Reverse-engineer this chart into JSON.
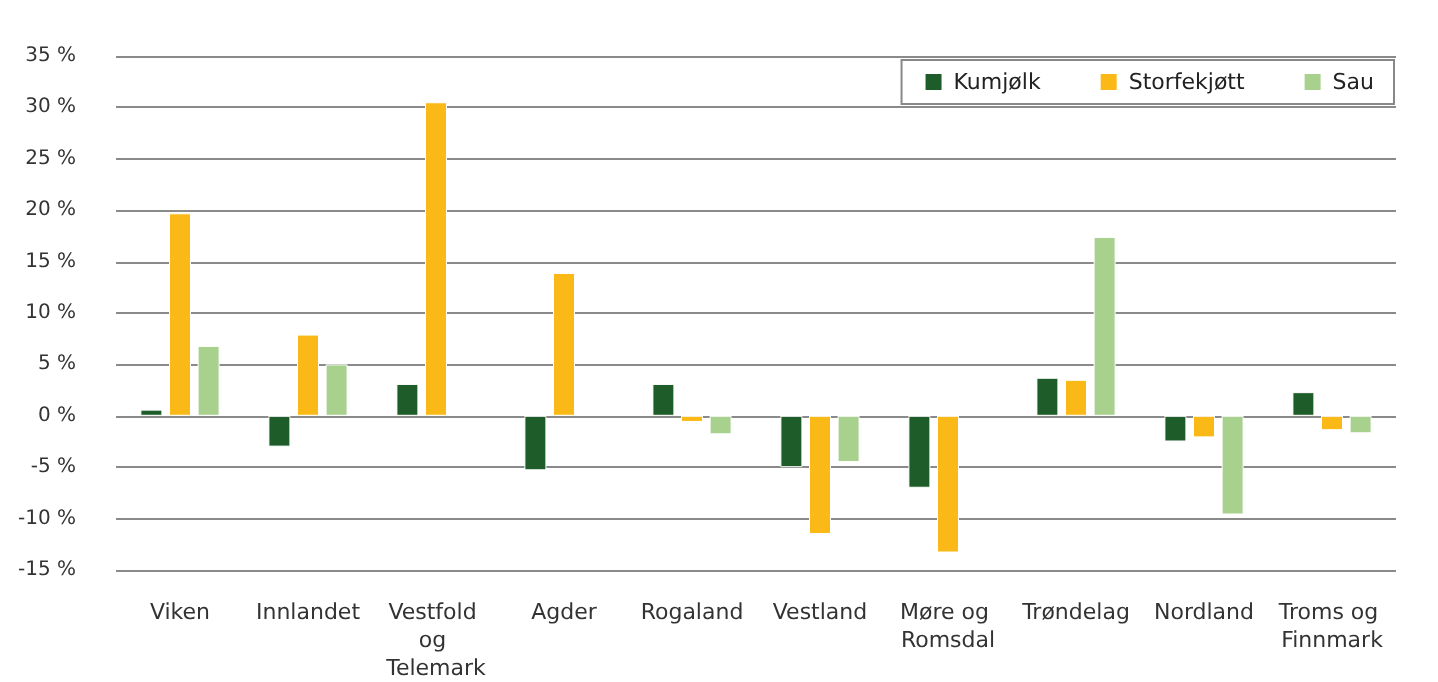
{
  "chart_data": {
    "type": "bar",
    "categories": [
      "Viken",
      "Innlandet",
      "Vestfold og Telemark",
      "Agder",
      "Rogaland",
      "Vestland",
      "Møre og Romsdal",
      "Trøndelag",
      "Nordland",
      "Troms og Finnmark"
    ],
    "series": [
      {
        "name": "Kumjølk",
        "color": "#1e5c2a",
        "values": [
          0.6,
          -3.0,
          3.1,
          -5.3,
          3.1,
          -5.0,
          -7.0,
          3.7,
          -2.5,
          2.3
        ]
      },
      {
        "name": "Storfekjøtt",
        "color": "#fbb917",
        "values": [
          19.7,
          7.9,
          30.5,
          13.9,
          -0.6,
          -11.5,
          -13.3,
          3.5,
          -2.1,
          -1.4
        ]
      },
      {
        "name": "Sau",
        "color": "#a9d18e",
        "values": [
          6.8,
          5.0,
          null,
          null,
          -1.8,
          -4.5,
          null,
          17.4,
          -9.6,
          -1.7
        ]
      }
    ],
    "ylim": [
      -15,
      35
    ],
    "yticks": [
      {
        "value": -15,
        "label": "-15 %"
      },
      {
        "value": -10,
        "label": "-10 %"
      },
      {
        "value": -5,
        "label": "-5 %"
      },
      {
        "value": 0,
        "label": "0 %"
      },
      {
        "value": 5,
        "label": "5 %"
      },
      {
        "value": 10,
        "label": "10 %"
      },
      {
        "value": 15,
        "label": "15 %"
      },
      {
        "value": 20,
        "label": "20 %"
      },
      {
        "value": 25,
        "label": "25 %"
      },
      {
        "value": 30,
        "label": "30 %"
      },
      {
        "value": 35,
        "label": "35 %"
      }
    ],
    "grid": "y",
    "legend": "top right"
  }
}
